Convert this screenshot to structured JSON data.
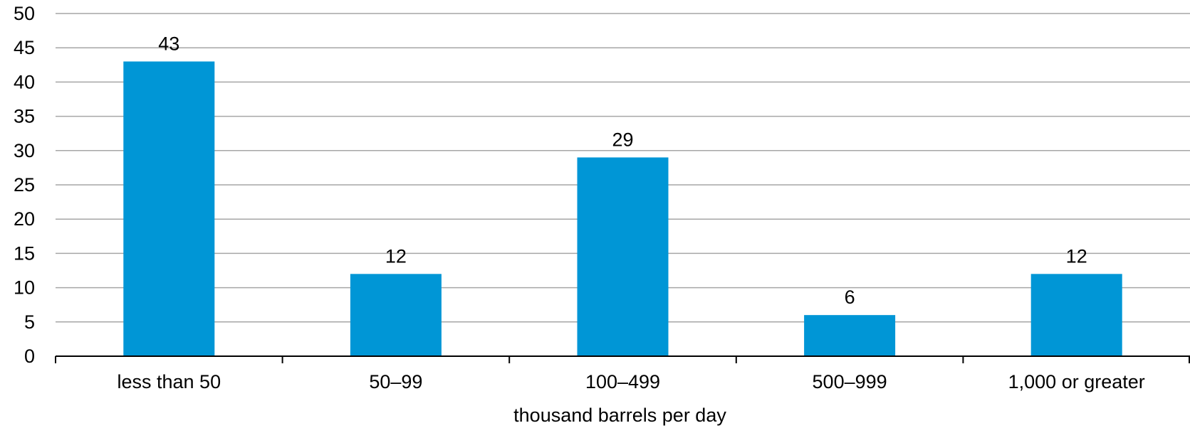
{
  "chart_data": {
    "type": "bar",
    "title": "",
    "xlabel": "thousand barrels per day",
    "ylabel": "",
    "categories": [
      "less than 50",
      "50–99",
      "100–499",
      "500–999",
      "1,000 or greater"
    ],
    "values": [
      43,
      12,
      29,
      6,
      12
    ],
    "data_labels": [
      "43",
      "12",
      "29",
      "6",
      "12"
    ],
    "ylim": [
      0,
      50
    ],
    "yticks": [
      0,
      5,
      10,
      15,
      20,
      25,
      30,
      35,
      40,
      45,
      50
    ],
    "grid": true,
    "legend": "none",
    "bar_color": "#0096D6",
    "gridline_color": "#A6A6A6",
    "axis_color": "#000000"
  }
}
